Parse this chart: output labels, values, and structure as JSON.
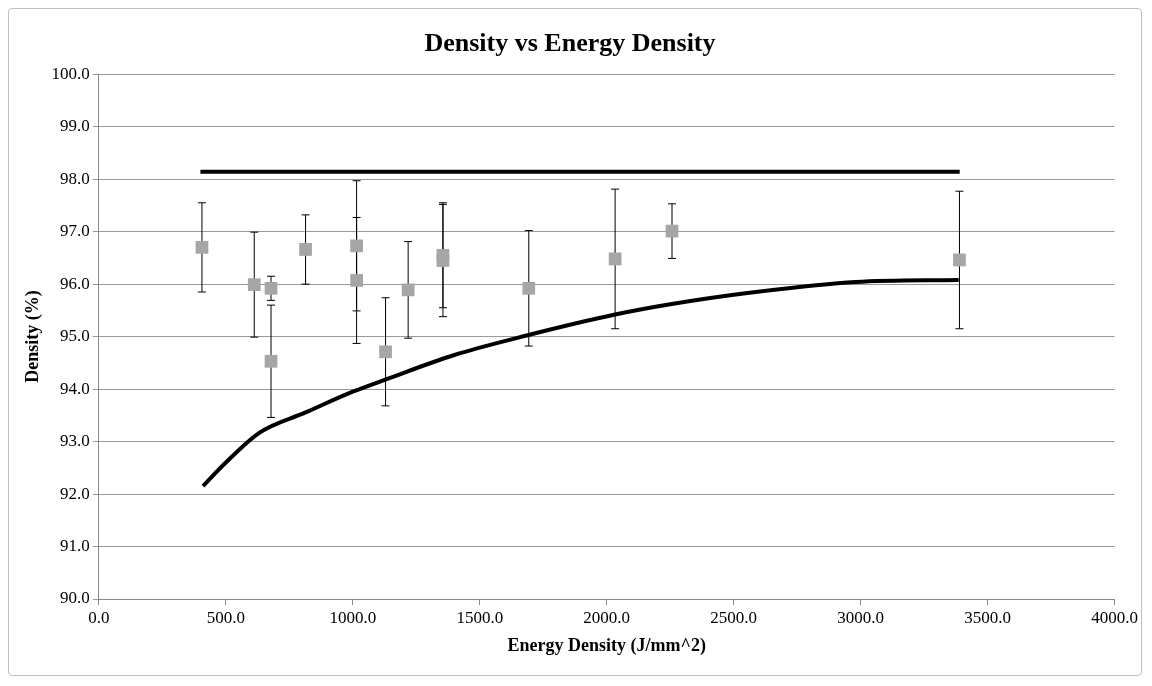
{
  "chart_data": {
    "type": "scatter",
    "title": "Density vs Energy Density",
    "xlabel": "Energy Density (J/mm^2)",
    "ylabel": "Density (%)",
    "xlim": [
      0,
      4000
    ],
    "ylim": [
      90,
      100
    ],
    "xticks": [
      {
        "value": 0,
        "label": "0.0"
      },
      {
        "value": 500,
        "label": "500.0"
      },
      {
        "value": 1000,
        "label": "1000.0"
      },
      {
        "value": 1500,
        "label": "1500.0"
      },
      {
        "value": 2000,
        "label": "2000.0"
      },
      {
        "value": 2500,
        "label": "2500.0"
      },
      {
        "value": 3000,
        "label": "3000.0"
      },
      {
        "value": 3500,
        "label": "3500.0"
      },
      {
        "value": 4000,
        "label": "4000.0"
      }
    ],
    "yticks": [
      {
        "value": 90,
        "label": "90.0"
      },
      {
        "value": 91,
        "label": "91.0"
      },
      {
        "value": 92,
        "label": "92.0"
      },
      {
        "value": 93,
        "label": "93.0"
      },
      {
        "value": 94,
        "label": "94.0"
      },
      {
        "value": 95,
        "label": "95.0"
      },
      {
        "value": 96,
        "label": "96.0"
      },
      {
        "value": 97,
        "label": "97.0"
      },
      {
        "value": 98,
        "label": "98.0"
      },
      {
        "value": 99,
        "label": "99.0"
      },
      {
        "value": 100,
        "label": "100.0"
      }
    ],
    "grid": "y",
    "legend": false,
    "series": [
      {
        "type": "line",
        "color": "#000000",
        "marker": "none",
        "line_style": "solid",
        "x": [
          400,
          3390
        ],
        "values": [
          98.14,
          98.14
        ]
      },
      {
        "type": "line",
        "color": "#000000",
        "marker": "none",
        "line_style": "solid",
        "x": [
          410,
          500,
          633,
          812,
          1000,
          1128,
          1400,
          1692,
          2033,
          2256,
          2554,
          2981,
          3386
        ],
        "values": [
          92.15,
          92.6,
          93.17,
          93.55,
          93.95,
          94.18,
          94.65,
          95.03,
          95.42,
          95.62,
          95.83,
          96.04,
          96.08
        ]
      },
      {
        "type": "scatter",
        "color": "#a6a6a6",
        "marker": "square",
        "x": [
          406,
          612,
          678,
          678,
          814,
          1015,
          1015,
          1129,
          1218,
          1355,
          1355,
          1693,
          2033,
          2257,
          3389
        ],
        "values": [
          96.7,
          95.99,
          95.92,
          94.53,
          96.66,
          96.73,
          96.07,
          94.71,
          95.89,
          96.55,
          96.45,
          95.92,
          96.48,
          97.01,
          96.46
        ],
        "errors": [
          0.85,
          1.0,
          0.23,
          1.07,
          0.66,
          1.24,
          1.2,
          1.03,
          0.92,
          1.0,
          1.07,
          1.1,
          1.33,
          0.52,
          1.31
        ]
      }
    ]
  }
}
